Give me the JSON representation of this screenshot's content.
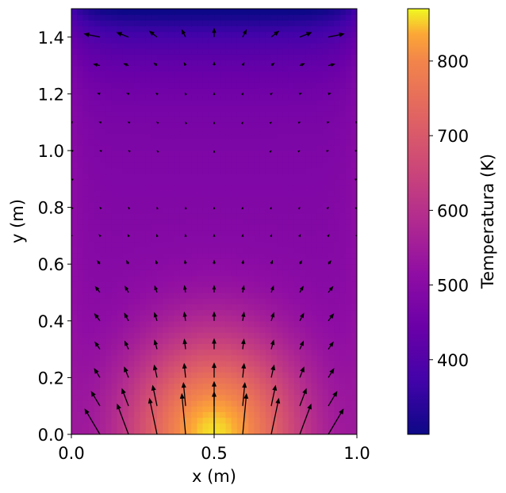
{
  "chart_data": {
    "type": "heatmap",
    "subtype": "temperature field with velocity quiver overlay",
    "xlabel": "x (m)",
    "ylabel": "y (m)",
    "xlim": [
      0.0,
      1.0
    ],
    "ylim": [
      0.0,
      1.5
    ],
    "x_ticks": [
      0.0,
      0.5,
      1.0
    ],
    "x_tick_labels": [
      "0.0",
      "0.5",
      "1.0"
    ],
    "y_ticks": [
      0.0,
      0.2,
      0.4,
      0.6,
      0.8,
      1.0,
      1.2,
      1.4
    ],
    "y_tick_labels": [
      "0.0",
      "0.2",
      "0.4",
      "0.6",
      "0.8",
      "1.0",
      "1.2",
      "1.4"
    ],
    "colormap": "plasma",
    "colorbar": {
      "label": "Temperatura (K)",
      "range": [
        300,
        870
      ],
      "ticks": [
        400,
        500,
        600,
        700,
        800
      ],
      "tick_labels": [
        "400",
        "500",
        "600",
        "700",
        "800"
      ]
    },
    "field": {
      "grid": [
        50,
        75
      ],
      "description": "hot zone centered at bottom middle (~860 K), cooling upward to ~300 K at top boundary",
      "hot_center": [
        0.5,
        0.0
      ],
      "max_temperature": 860,
      "bulk_temperature": 500,
      "top_temperature": 300
    },
    "quiver": {
      "x": [
        0.0,
        0.1,
        0.2,
        0.3,
        0.4,
        0.5,
        0.6,
        0.7,
        0.8,
        0.9,
        1.0
      ],
      "y": [
        0.0,
        0.1,
        0.2,
        0.3,
        0.4,
        0.5,
        0.6,
        0.7,
        0.8,
        0.9,
        1.0,
        1.1,
        1.2,
        1.3,
        1.4,
        1.5
      ],
      "pattern": "upward diverging plume from bottom center; outward flow near top corners",
      "color": "#000000"
    },
    "grid_lines": false,
    "legend": "none"
  }
}
